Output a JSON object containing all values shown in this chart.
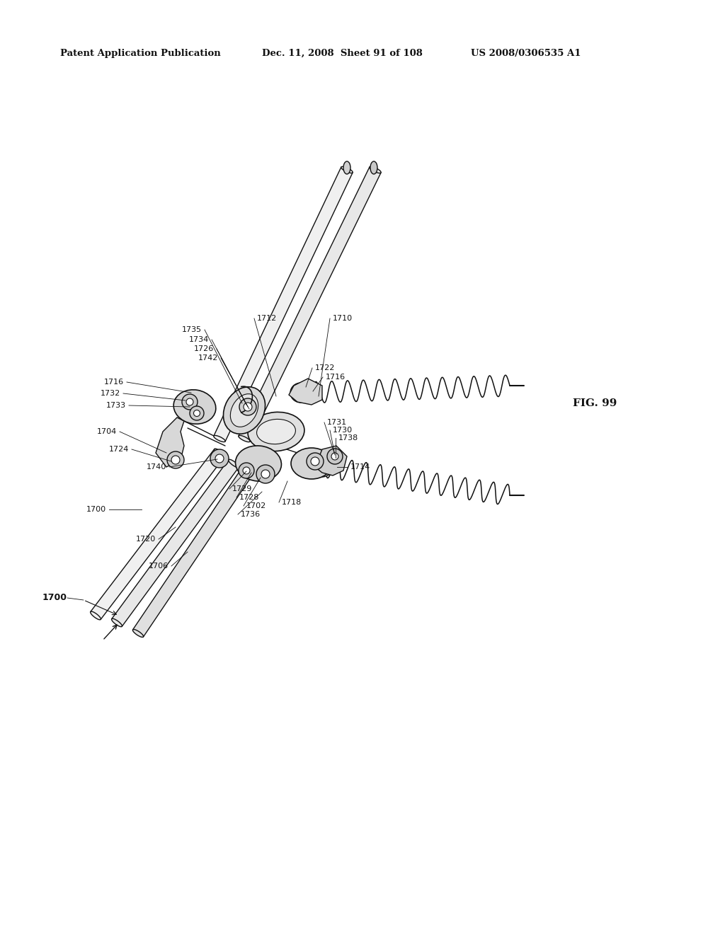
{
  "background_color": "#ffffff",
  "header_left": "Patent Application Publication",
  "header_middle": "Dec. 11, 2008  Sheet 91 of 108",
  "header_right": "US 2008/0306535 A1",
  "fig_label": "FIG. 99",
  "title_fontsize": 9.5,
  "label_fontsize": 8.0,
  "fig_label_fontsize": 11,
  "color_main": "#111111",
  "color_gray": "#888888",
  "color_lightgray": "#cccccc",
  "color_midgray": "#aaaaaa"
}
